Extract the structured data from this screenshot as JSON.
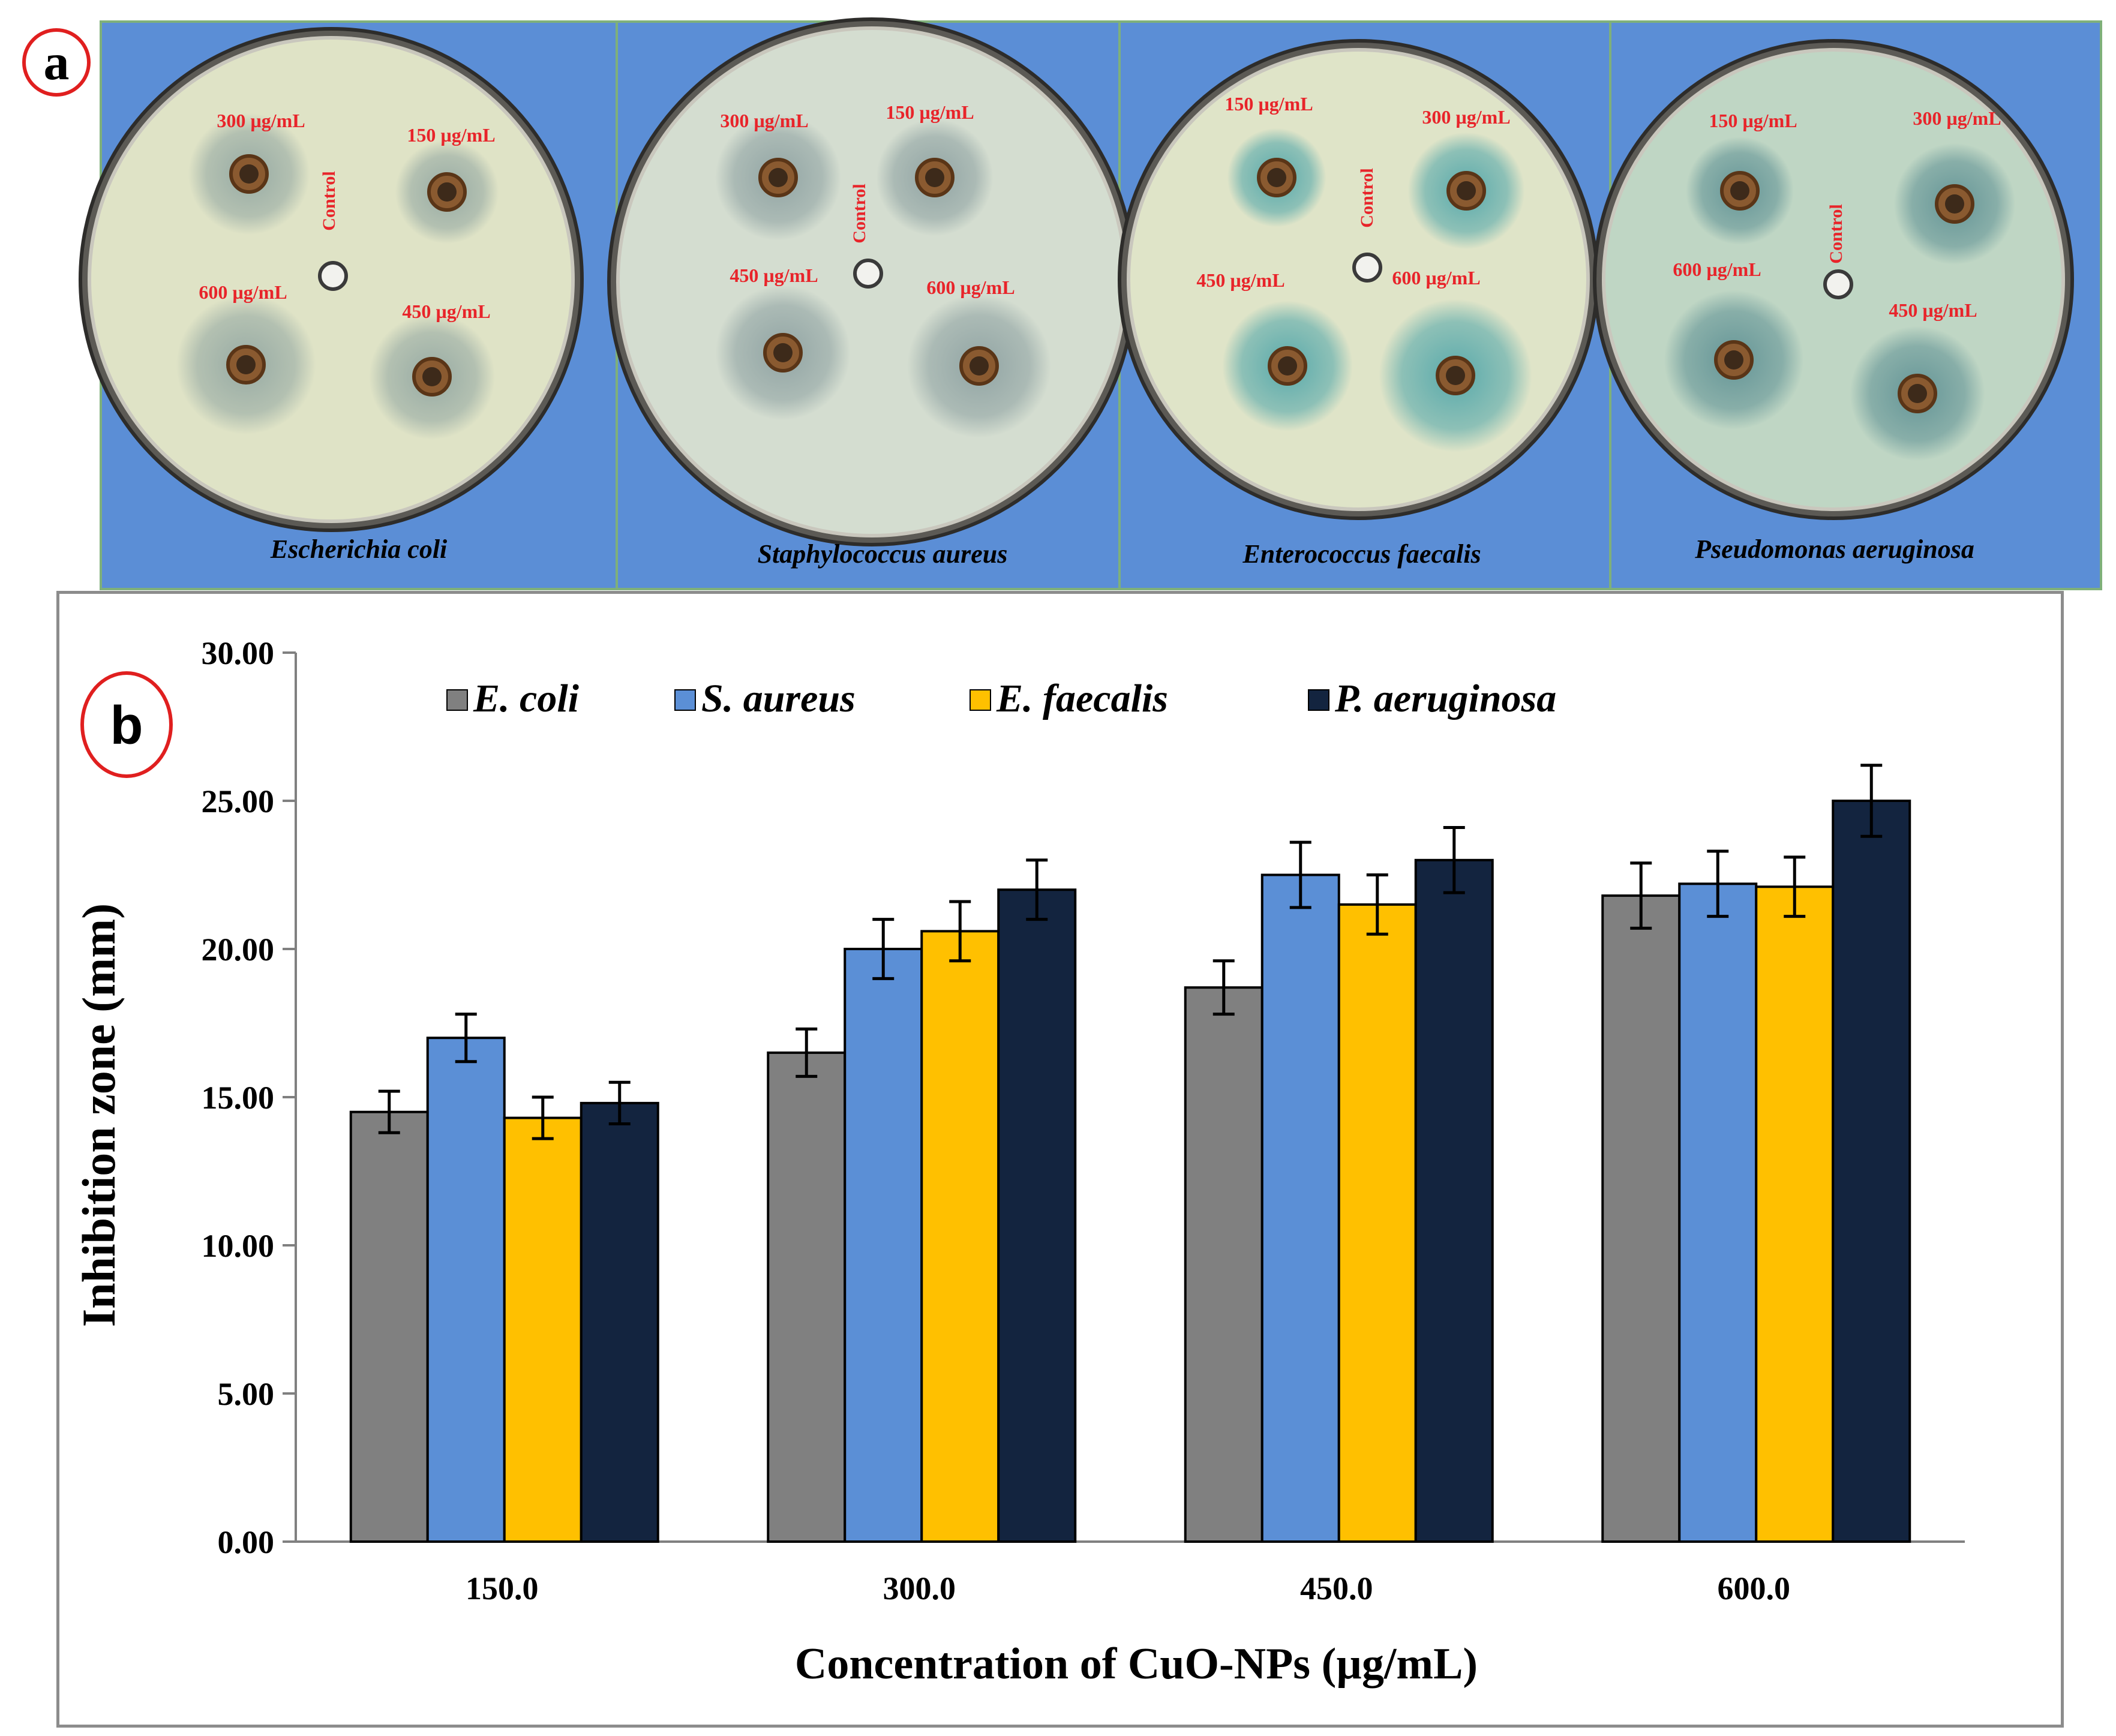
{
  "panel_a": {
    "badge": "a",
    "background_color": "#5b8ed6",
    "plates": [
      {
        "organism": "Escherichia coli",
        "agar_color": "#dfe3c6",
        "zone_color": "#8fa4a0",
        "wells": [
          {
            "label": "300 µg/mL",
            "zone_strength": 0.55
          },
          {
            "label": "150 µg/mL",
            "zone_strength": 0.35
          },
          {
            "label": "600 µg/mL",
            "zone_strength": 0.75
          },
          {
            "label": "450 µg/mL",
            "zone_strength": 0.6
          }
        ],
        "control_label": "Control"
      },
      {
        "organism": "Staphylococcus aureus",
        "agar_color": "#d4ddd0",
        "zone_color": "#8a9e9f",
        "wells": [
          {
            "label": "300 µg/mL",
            "zone_strength": 0.6
          },
          {
            "label": "150 µg/mL",
            "zone_strength": 0.5
          },
          {
            "label": "450 µg/mL",
            "zone_strength": 0.7
          },
          {
            "label": "600 µg/mL",
            "zone_strength": 0.8
          }
        ],
        "control_label": "Control"
      },
      {
        "organism": "Enterococcus  faecalis",
        "agar_color": "#dfe4c8",
        "zone_color": "#4aa3a8",
        "wells": [
          {
            "label": "150 µg/mL",
            "zone_strength": 0.3
          },
          {
            "label": "300 µg/mL",
            "zone_strength": 0.5
          },
          {
            "label": "450 µg/mL",
            "zone_strength": 0.65
          },
          {
            "label": "600 µg/mL",
            "zone_strength": 0.9
          }
        ],
        "control_label": "Control"
      },
      {
        "organism": "Pseudomonas aeruginosa",
        "agar_color": "#bfd6c4",
        "zone_color": "#5b8e92",
        "wells": [
          {
            "label": "150 µg/mL",
            "zone_strength": 0.4
          },
          {
            "label": "300 µg/mL",
            "zone_strength": 0.55
          },
          {
            "label": "600 µg/mL",
            "zone_strength": 0.75
          },
          {
            "label": "450 µg/mL",
            "zone_strength": 0.7
          }
        ],
        "control_label": "Control"
      }
    ]
  },
  "chart_data": {
    "type": "bar",
    "badge": "b",
    "title": "",
    "xlabel": "Concentration of CuO-NPs (µg/mL)",
    "ylabel": "Inhibition zone (mm)",
    "ylim": [
      0,
      30
    ],
    "yticks": [
      0,
      5,
      10,
      15,
      20,
      25,
      30
    ],
    "ytick_labels": [
      "0.00",
      "5.00",
      "10.00",
      "15.00",
      "20.00",
      "25.00",
      "30.00"
    ],
    "categories": [
      "150.0",
      "300.0",
      "450.0",
      "600.0"
    ],
    "grid": false,
    "legend_position": "top",
    "series": [
      {
        "name": "E. coli",
        "color": "#808080",
        "values": [
          14.5,
          16.5,
          18.7,
          21.8
        ],
        "errors": [
          0.7,
          0.8,
          0.9,
          1.1
        ]
      },
      {
        "name": "S. aureus",
        "color": "#5b8fd6",
        "values": [
          17.0,
          20.0,
          22.5,
          22.2
        ],
        "errors": [
          0.8,
          1.0,
          1.1,
          1.1
        ]
      },
      {
        "name": "E. faecalis",
        "color": "#ffc000",
        "values": [
          14.3,
          20.6,
          21.5,
          22.1
        ],
        "errors": [
          0.7,
          1.0,
          1.0,
          1.0
        ]
      },
      {
        "name": "P. aeruginosa",
        "color": "#13243f",
        "values": [
          14.8,
          22.0,
          23.0,
          25.0
        ],
        "errors": [
          0.7,
          1.0,
          1.1,
          1.2
        ]
      }
    ]
  }
}
